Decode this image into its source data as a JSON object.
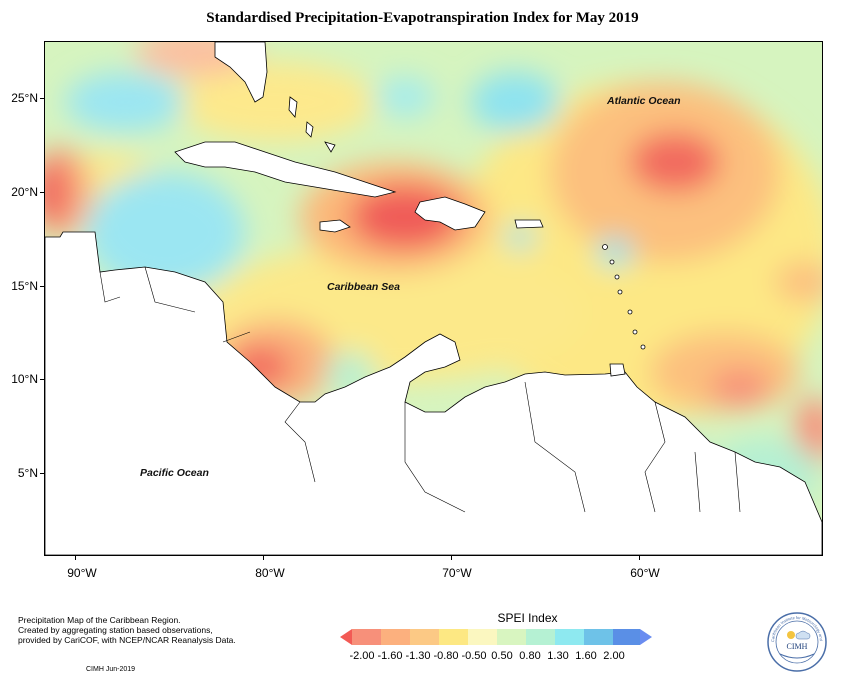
{
  "title": "Standardised Precipitation-Evapotranspiration Index for May 2019",
  "map": {
    "latitude_labels": [
      "25°N",
      "20°N",
      "15°N",
      "10°N",
      "5°N"
    ],
    "longitude_labels": [
      "90°W",
      "80°W",
      "70°W",
      "60°W"
    ],
    "ocean_labels": {
      "atlantic": "Atlantic Ocean",
      "caribbean": "Caribbean Sea",
      "pacific": "Pacific Ocean"
    }
  },
  "credits": {
    "line1": "Precipitation Map of the Caribbean Region.",
    "line2": "Created by aggregating station based observations,",
    "line3": "provided by CariCOF, with NCEP/NCAR Reanalysis Data.",
    "footer": "CIMH  Jun-2019"
  },
  "legend": {
    "title": "SPEI Index",
    "labels": [
      "-2.00",
      "-1.60",
      "-1.30",
      "-0.80",
      "-0.50",
      "0.50",
      "0.80",
      "1.30",
      "1.60",
      "2.00"
    ],
    "colors": [
      "#f25a55",
      "#f7907a",
      "#fcbf80",
      "#fde883",
      "#fbf7c0",
      "#d8f5c0",
      "#b5f1d3",
      "#8ee9f0",
      "#6ec2e8",
      "#5a8fe6",
      "#6a8cf0"
    ]
  },
  "logo": {
    "text": "CIMH",
    "ring_text": "Caribbean Institute for Meteorology and Hydrology"
  }
}
